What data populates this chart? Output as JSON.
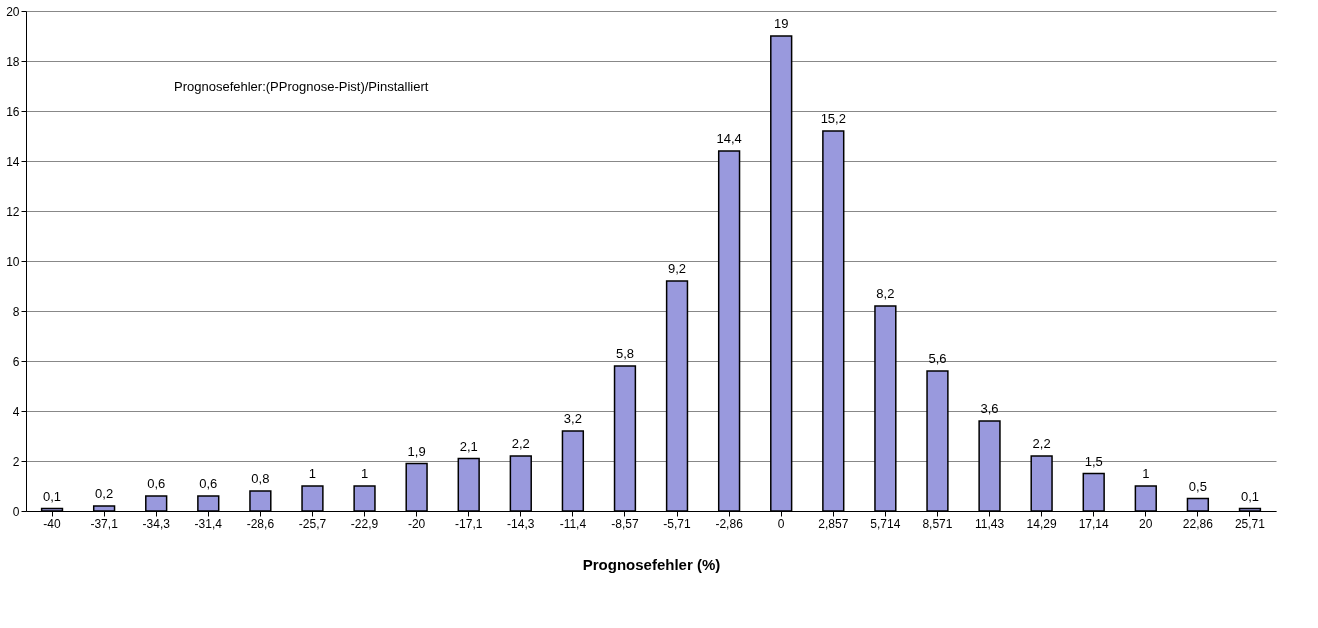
{
  "chart_data": {
    "type": "bar",
    "xlabel": "Prognosefehler (%)",
    "categories": [
      "-40",
      "-37,1",
      "-34,3",
      "-31,4",
      "-28,6",
      "-25,7",
      "-22,9",
      "-20",
      "-17,1",
      "-14,3",
      "-11,4",
      "-8,57",
      "-5,71",
      "-2,86",
      "0",
      "2,857",
      "5,714",
      "8,571",
      "11,43",
      "14,29",
      "17,14",
      "20",
      "22,86",
      "25,71"
    ],
    "values": [
      0.1,
      0.2,
      0.6,
      0.6,
      0.8,
      1,
      1,
      1.9,
      2.1,
      2.2,
      3.2,
      5.8,
      9.2,
      14.4,
      19,
      15.2,
      8.2,
      5.6,
      3.6,
      2.2,
      1.5,
      1,
      0.5,
      0.1
    ],
    "value_labels": [
      "0,1",
      "0,2",
      "0,6",
      "0,6",
      "0,8",
      "1",
      "1",
      "1,9",
      "2,1",
      "2,2",
      "3,2",
      "5,8",
      "9,2",
      "14,4",
      "19",
      "15,2",
      "8,2",
      "5,6",
      "3,6",
      "2,2",
      "1,5",
      "1",
      "0,5",
      "0,1"
    ],
    "color": "#9999dd",
    "ylim": [
      0,
      20
    ],
    "yticks": [
      0,
      2,
      4,
      6,
      8,
      10,
      12,
      14,
      16,
      18,
      20
    ],
    "grid": "y",
    "annotations": [
      "Prognosefehler:(PPrognose-Pist)/Pinstalliert"
    ]
  }
}
